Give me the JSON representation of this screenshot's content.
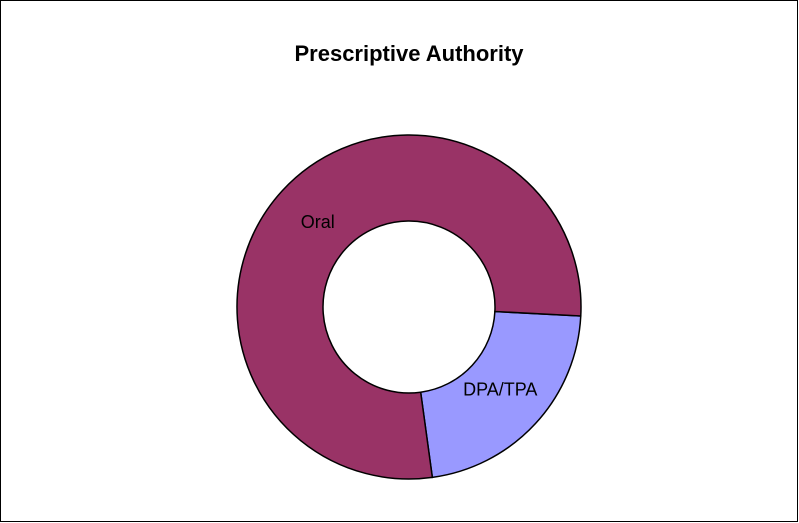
{
  "chart_data": {
    "type": "donut",
    "title": "Prescriptive Authority",
    "categories": [
      "DPA/TPA",
      "Oral"
    ],
    "values": [
      22,
      78
    ],
    "colors": [
      "#9999ff",
      "#993366"
    ]
  }
}
